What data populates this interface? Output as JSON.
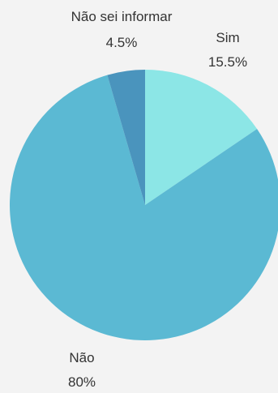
{
  "chart_data": {
    "type": "pie",
    "title": "",
    "slices": [
      {
        "label": "Sim",
        "value_label": "15.5%",
        "value": 15.5,
        "color": "#8ce6e6"
      },
      {
        "label": "Não",
        "value_label": "80%",
        "value": 80,
        "color": "#5bb9d3"
      },
      {
        "label": "Não sei informar",
        "value_label": "4.5%",
        "value": 4.5,
        "color": "#4a94bd"
      }
    ],
    "start_angle_deg": 0,
    "direction": "clockwise",
    "background": "#f3f3f3"
  }
}
